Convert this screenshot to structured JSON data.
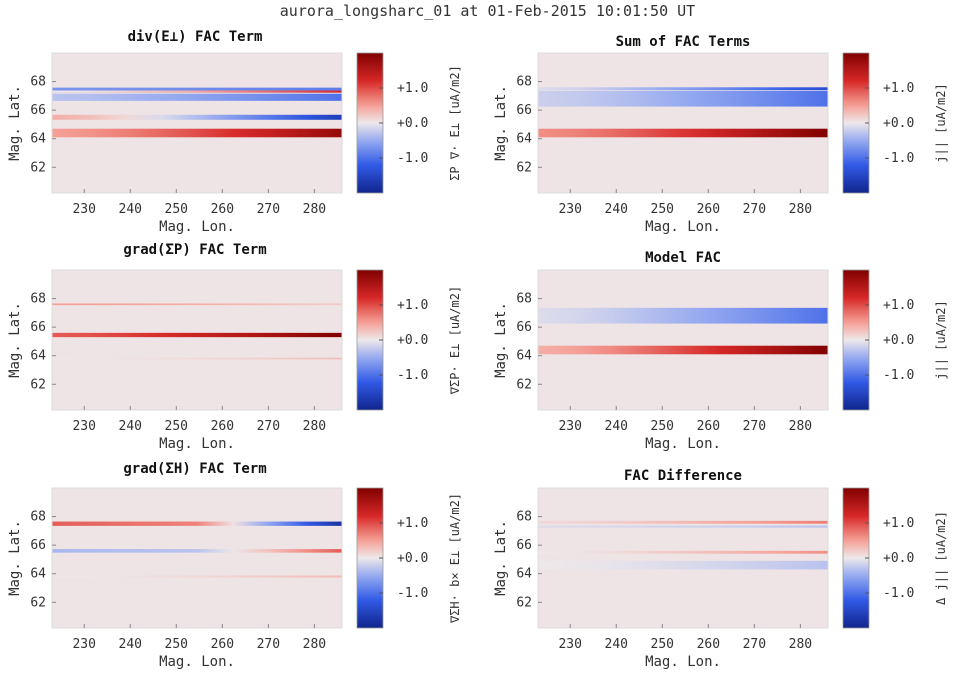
{
  "figure_title": "aurora_longsharc_01 at 01-Feb-2015 10:01:50 UT",
  "colors": {
    "negative": "#1a2f9e",
    "neutral": "#f2f2f2",
    "positive": "#8a0000",
    "background": "#eee3e5"
  },
  "chart_data": [
    {
      "id": "div",
      "type": "heatmap",
      "title": "div(E⊥) FAC Term",
      "xlabel": "Mag. Lon.",
      "ylabel": "Mag. Lat.",
      "xlim": [
        223,
        286
      ],
      "ylim": [
        60.2,
        70.0
      ],
      "xticks": [
        "230",
        "240",
        "250",
        "260",
        "270",
        "280"
      ],
      "yticks": [
        "62",
        "64",
        "66",
        "68"
      ],
      "colorbar_label": "ΣP ∇· E⊥ [uA/m2]",
      "colorbar_ticks": [
        "+1.0",
        "+0.0",
        "-1.0"
      ],
      "clim": [
        -2,
        2
      ],
      "bands": [
        {
          "lat": 67.4,
          "width": 0.35,
          "start": -0.7,
          "end": -0.9
        },
        {
          "lat": 66.9,
          "width": 0.5,
          "start": -0.3,
          "end": -1.0
        },
        {
          "lat": 65.5,
          "width": 0.35,
          "start": 0.4,
          "end": -1.6
        },
        {
          "lat": 64.4,
          "width": 0.6,
          "start": 0.5,
          "end": 1.8
        },
        {
          "lat": 67.3,
          "width": 0.15,
          "start": 0.0,
          "end": 1.2
        }
      ],
      "xlabel_visible": true
    },
    {
      "id": "sum",
      "type": "heatmap",
      "title": "Sum of FAC Terms",
      "xlabel": "Mag. Lon.",
      "ylabel": "Mag. Lat.",
      "xlim": [
        223,
        286
      ],
      "ylim": [
        60.2,
        70.0
      ],
      "xticks": [
        "230",
        "240",
        "250",
        "260",
        "270",
        "280"
      ],
      "yticks": [
        "62",
        "64",
        "66",
        "68"
      ],
      "colorbar_label": "j|| [uA/m2]",
      "colorbar_ticks": [
        "+1.0",
        "+0.0",
        "-1.0"
      ],
      "clim": [
        -2,
        2
      ],
      "bands": [
        {
          "lat": 66.8,
          "width": 1.1,
          "start": -0.2,
          "end": -1.0
        },
        {
          "lat": 67.5,
          "width": 0.2,
          "start": -0.1,
          "end": -1.4
        },
        {
          "lat": 64.4,
          "width": 0.6,
          "start": 0.6,
          "end": 2.0
        }
      ],
      "xlabel_visible": true
    },
    {
      "id": "gradP",
      "type": "heatmap",
      "title": "grad(ΣP) FAC Term",
      "xlabel": "Mag. Lon.",
      "ylabel": "Mag. Lat.",
      "xlim": [
        223,
        286
      ],
      "ylim": [
        60.2,
        70.0
      ],
      "xticks": [
        "230",
        "240",
        "250",
        "260",
        "270",
        "280"
      ],
      "yticks": [
        "62",
        "64",
        "66",
        "68"
      ],
      "colorbar_label": "∇ΣP· E⊥ [uA/m2]",
      "colorbar_ticks": [
        "+1.0",
        "+0.0",
        "-1.0"
      ],
      "clim": [
        -2,
        2
      ],
      "bands": [
        {
          "lat": 65.45,
          "width": 0.3,
          "start": 0.9,
          "end": 2.0
        },
        {
          "lat": 67.6,
          "width": 0.12,
          "start": 0.5,
          "end": 0.2
        },
        {
          "lat": 63.8,
          "width": 0.12,
          "start": 0.0,
          "end": 0.3
        }
      ],
      "xlabel_visible": true
    },
    {
      "id": "model",
      "type": "heatmap",
      "title": "Model FAC",
      "xlabel": "Mag. Lon.",
      "ylabel": "Mag. Lat.",
      "xlim": [
        223,
        286
      ],
      "ylim": [
        60.2,
        70.0
      ],
      "xticks": [
        "230",
        "240",
        "250",
        "260",
        "270",
        "280"
      ],
      "yticks": [
        "62",
        "64",
        "66",
        "68"
      ],
      "colorbar_label": "j|| [uA/m2]",
      "colorbar_ticks": [
        "+1.0",
        "+0.0",
        "-1.0"
      ],
      "clim": [
        -2,
        2
      ],
      "bands": [
        {
          "lat": 66.8,
          "width": 1.1,
          "start": -0.1,
          "end": -1.0
        },
        {
          "lat": 64.4,
          "width": 0.6,
          "start": 0.4,
          "end": 2.0
        }
      ],
      "xlabel_visible": true
    },
    {
      "id": "gradH",
      "type": "heatmap",
      "title": "grad(ΣH) FAC Term",
      "xlabel": "Mag. Lon.",
      "ylabel": "Mag. Lat.",
      "xlim": [
        223,
        286
      ],
      "ylim": [
        60.2,
        70.0
      ],
      "xticks": [
        "230",
        "240",
        "250",
        "260",
        "270",
        "280"
      ],
      "yticks": [
        "62",
        "64",
        "66",
        "68"
      ],
      "colorbar_label": "∇ΣH· b× E⊥ [uA/m2]",
      "colorbar_ticks": [
        "+1.0",
        "+0.0",
        "-1.0"
      ],
      "clim": [
        -2,
        2
      ],
      "bands": [
        {
          "lat": 67.5,
          "width": 0.3,
          "start": 0.9,
          "end": -1.8,
          "flip": true
        },
        {
          "lat": 65.6,
          "width": 0.25,
          "start": -0.4,
          "end": 0.9,
          "flip": true
        },
        {
          "lat": 63.8,
          "width": 0.15,
          "start": 0.0,
          "end": 0.3
        }
      ],
      "xlabel_visible": true
    },
    {
      "id": "diff",
      "type": "heatmap",
      "title": "FAC Difference",
      "xlabel": "Mag. Lon.",
      "ylabel": "Mag. Lat.",
      "xlim": [
        223,
        286
      ],
      "ylim": [
        60.2,
        70.0
      ],
      "xticks": [
        "230",
        "240",
        "250",
        "260",
        "270",
        "280"
      ],
      "yticks": [
        "62",
        "64",
        "66",
        "68"
      ],
      "colorbar_label": "Δ j|| [uA/m2]",
      "colorbar_ticks": [
        "+1.0",
        "+0.0",
        "-1.0"
      ],
      "clim": [
        -2,
        2
      ],
      "bands": [
        {
          "lat": 67.6,
          "width": 0.2,
          "start": 0.1,
          "end": 0.7
        },
        {
          "lat": 67.3,
          "width": 0.15,
          "start": -0.1,
          "end": -0.3
        },
        {
          "lat": 65.5,
          "width": 0.2,
          "start": 0.0,
          "end": 0.6
        },
        {
          "lat": 64.6,
          "width": 0.6,
          "start": 0.0,
          "end": -0.3
        }
      ],
      "xlabel_visible": true
    }
  ]
}
